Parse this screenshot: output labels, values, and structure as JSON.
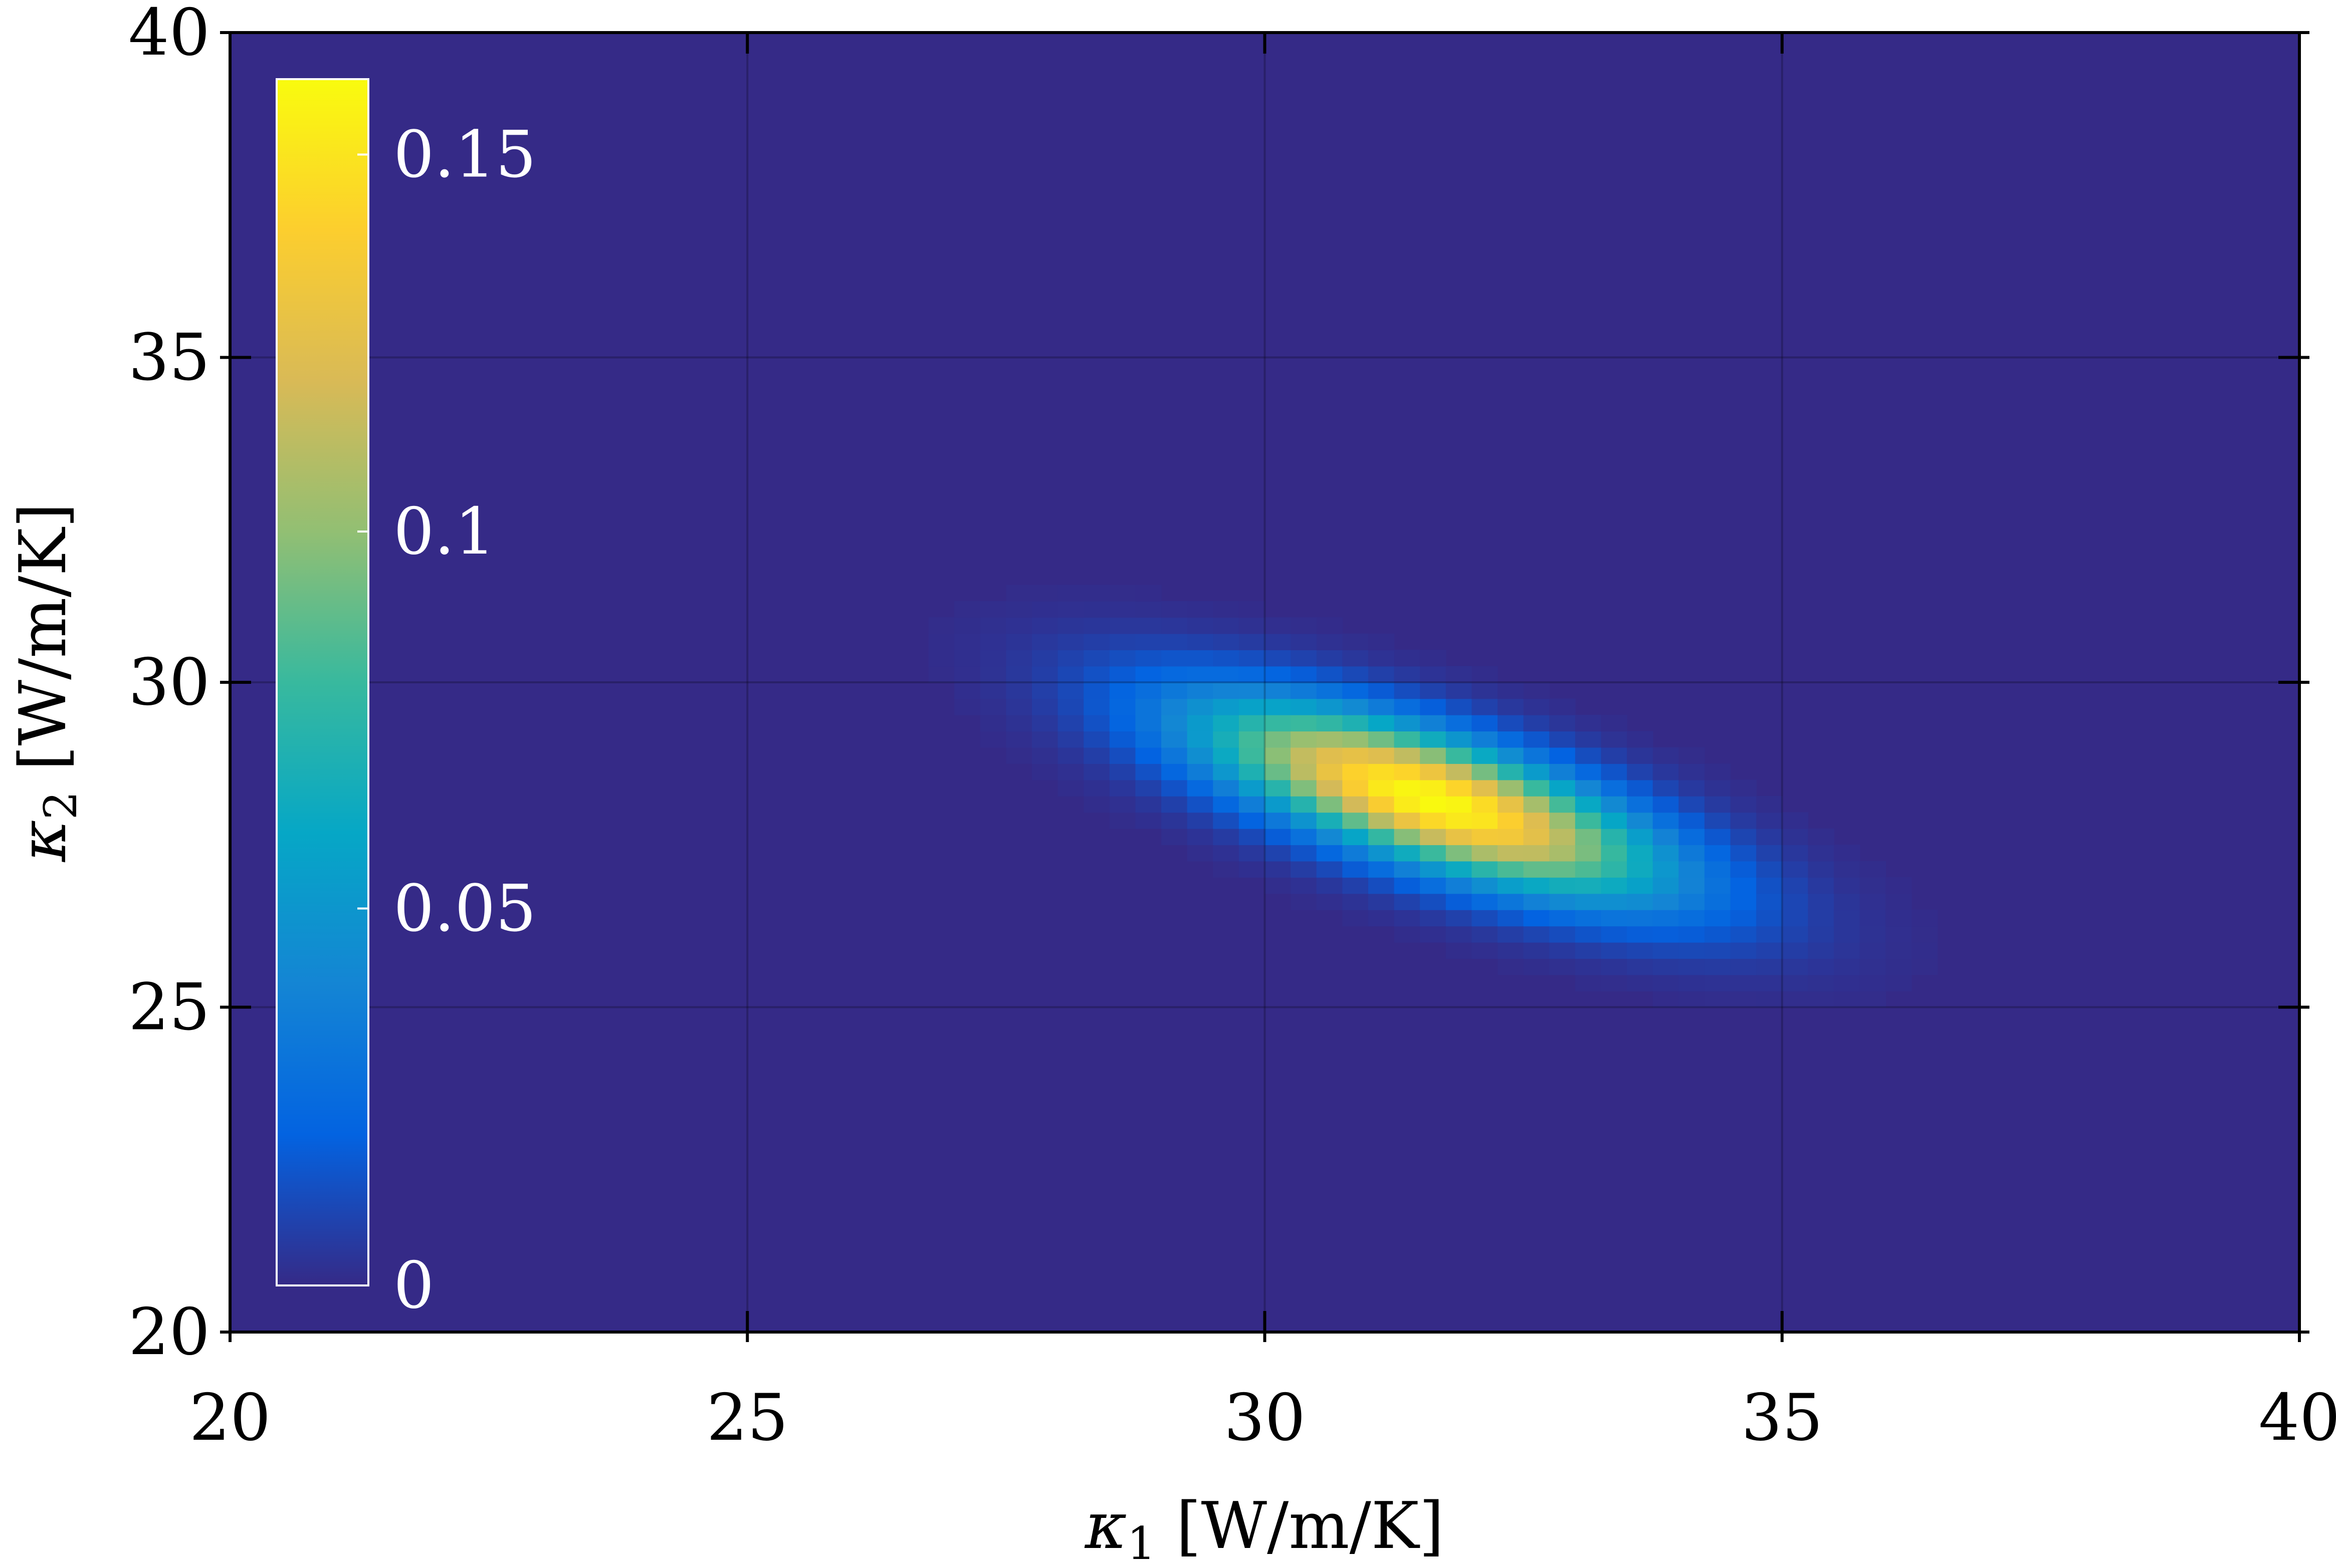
{
  "chart_data": {
    "type": "heatmap",
    "title": "",
    "xlabel": {
      "symbol": "κ",
      "subscript": "1",
      "unit": " [W/m/K]"
    },
    "ylabel": {
      "symbol": "κ",
      "subscript": "2",
      "unit": " [W/m/K]"
    },
    "xlim": [
      20,
      40
    ],
    "ylim": [
      20,
      40
    ],
    "xticks": [
      20,
      25,
      30,
      35,
      40
    ],
    "yticks": [
      20,
      25,
      30,
      35,
      40
    ],
    "xtick_labels": [
      "20",
      "25",
      "30",
      "35",
      "40"
    ],
    "ytick_labels": [
      "20",
      "25",
      "30",
      "35",
      "40"
    ],
    "grid": true,
    "grid_resolution": 0.25,
    "density": {
      "distribution": "bivariate gaussian",
      "peak_value": 0.16,
      "mean": [
        31.6,
        28.2
      ],
      "std": [
        1.5,
        1.0
      ],
      "correlation": -0.72
    },
    "colorbar": {
      "placement": "inside-left",
      "range": [
        0,
        0.16
      ],
      "ticks": [
        0,
        0.05,
        0.1,
        0.15
      ],
      "tick_labels": [
        "0",
        "0.05",
        "0.1",
        "0.15"
      ],
      "colormap": "parula",
      "colors": [
        "#352a87",
        "#0363e1",
        "#1485d4",
        "#06a7c6",
        "#38b99e",
        "#92bf73",
        "#d9ba56",
        "#fcce2e",
        "#f9fb0e"
      ]
    }
  }
}
